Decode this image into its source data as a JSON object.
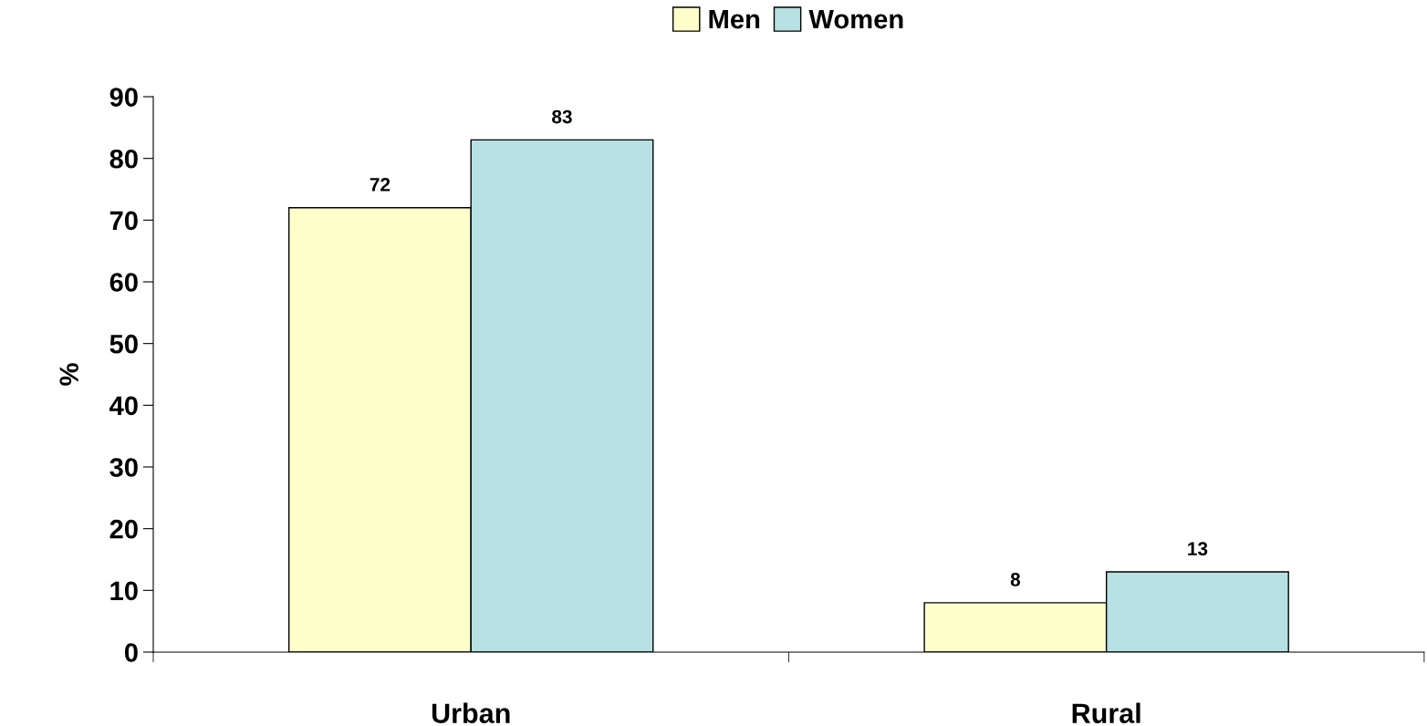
{
  "chart_data": {
    "type": "bar",
    "categories": [
      "Urban",
      "Rural"
    ],
    "ylabel": "%",
    "series": [
      {
        "name": "Men",
        "color": "#ffffcc",
        "values": [
          72,
          8
        ]
      },
      {
        "name": "Women",
        "color": "#b6e0e2",
        "values": [
          83,
          13
        ]
      }
    ],
    "ylim": [
      0,
      90
    ],
    "yticks": [
      0,
      10,
      20,
      30,
      40,
      50,
      60,
      70,
      80,
      90
    ],
    "data_labels": true,
    "legend": "top",
    "grid": false
  }
}
